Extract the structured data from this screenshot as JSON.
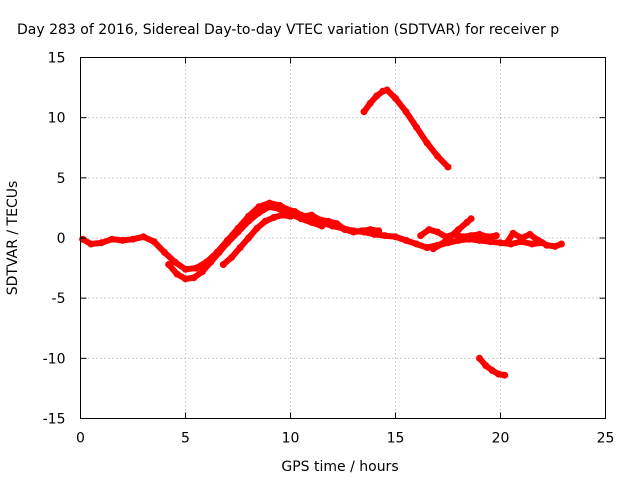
{
  "chart_data": {
    "type": "scatter",
    "title": "Day 283 of 2016, Sidereal Day-to-day VTEC variation (SDTVAR) for receiver p",
    "xlabel": "GPS time / hours",
    "ylabel": "SDTVAR / TECUs",
    "xlim": [
      0,
      25
    ],
    "ylim": [
      -15,
      15
    ],
    "x_ticks": [
      "0",
      "5",
      "10",
      "15",
      "20",
      "25"
    ],
    "x_tick_values": [
      0,
      5,
      10,
      15,
      20,
      25
    ],
    "y_ticks": [
      "15",
      "10",
      "5",
      "0",
      "-5",
      "-10",
      "-15"
    ],
    "y_tick_values": [
      15,
      10,
      5,
      0,
      -5,
      -10,
      -15
    ],
    "grid": true,
    "legend": "none",
    "marker_color": "#ff0000",
    "series": [
      {
        "points": [
          [
            0.1,
            -0.1
          ],
          [
            0.5,
            -0.5
          ],
          [
            1.0,
            -0.4
          ],
          [
            1.5,
            -0.1
          ],
          [
            2.0,
            -0.2
          ],
          [
            2.5,
            -0.1
          ],
          [
            3.0,
            0.1
          ],
          [
            3.5,
            -0.3
          ],
          [
            4.0,
            -1.2
          ],
          [
            4.5,
            -2.0
          ],
          [
            5.0,
            -2.6
          ],
          [
            5.5,
            -2.5
          ],
          [
            6.0,
            -2.0
          ],
          [
            6.5,
            -1.2
          ],
          [
            7.0,
            -0.2
          ],
          [
            7.5,
            0.8
          ],
          [
            8.0,
            1.8
          ],
          [
            8.5,
            2.6
          ],
          [
            9.0,
            2.9
          ],
          [
            9.5,
            2.7
          ],
          [
            10.0,
            2.2
          ],
          [
            10.5,
            1.9
          ],
          [
            11.0,
            1.6
          ],
          [
            11.5,
            1.3
          ],
          [
            12.0,
            1.0
          ],
          [
            12.5,
            0.8
          ],
          [
            13.0,
            0.6
          ],
          [
            13.5,
            0.5
          ],
          [
            14.0,
            0.3
          ],
          [
            14.5,
            0.2
          ],
          [
            15.0,
            0.1
          ],
          [
            15.5,
            -0.2
          ],
          [
            16.0,
            -0.5
          ],
          [
            16.5,
            -0.8
          ],
          [
            17.0,
            -0.6
          ],
          [
            17.5,
            -0.4
          ],
          [
            18.0,
            -0.2
          ],
          [
            18.5,
            -0.1
          ],
          [
            19.0,
            -0.2
          ],
          [
            19.5,
            -0.3
          ],
          [
            20.0,
            -0.4
          ],
          [
            20.5,
            -0.5
          ],
          [
            21.0,
            -0.3
          ],
          [
            21.5,
            -0.5
          ],
          [
            22.0,
            -0.4
          ]
        ]
      },
      {
        "points": [
          [
            4.2,
            -2.2
          ],
          [
            4.6,
            -3.0
          ],
          [
            5.0,
            -3.4
          ],
          [
            5.4,
            -3.3
          ],
          [
            5.8,
            -2.8
          ],
          [
            6.2,
            -2.0
          ],
          [
            6.6,
            -1.2
          ],
          [
            7.0,
            -0.4
          ],
          [
            7.5,
            0.5
          ],
          [
            8.0,
            1.4
          ],
          [
            8.5,
            2.1
          ],
          [
            9.0,
            2.6
          ],
          [
            9.5,
            2.4
          ],
          [
            10.0,
            2.0
          ],
          [
            10.5,
            1.6
          ],
          [
            11.0,
            1.3
          ],
          [
            11.5,
            1.0
          ]
        ]
      },
      {
        "points": [
          [
            6.8,
            -2.2
          ],
          [
            7.2,
            -1.6
          ],
          [
            7.6,
            -0.8
          ],
          [
            8.0,
            0.0
          ],
          [
            8.4,
            0.8
          ],
          [
            8.8,
            1.4
          ],
          [
            9.2,
            1.7
          ],
          [
            9.6,
            1.9
          ],
          [
            10.0,
            1.8
          ]
        ]
      },
      {
        "points": [
          [
            9.8,
            2.4
          ],
          [
            10.2,
            2.2
          ],
          [
            10.6,
            1.8
          ],
          [
            11.0,
            1.9
          ],
          [
            11.4,
            1.5
          ],
          [
            11.8,
            1.4
          ],
          [
            12.2,
            1.2
          ],
          [
            12.6,
            0.7
          ],
          [
            13.0,
            0.5
          ],
          [
            13.4,
            0.6
          ],
          [
            13.8,
            0.7
          ],
          [
            14.2,
            0.6
          ]
        ]
      },
      {
        "points": [
          [
            16.2,
            0.2
          ],
          [
            16.6,
            0.7
          ],
          [
            17.0,
            0.5
          ],
          [
            17.4,
            0.1
          ],
          [
            17.8,
            0.3
          ],
          [
            18.2,
            0.1
          ],
          [
            18.6,
            0.2
          ],
          [
            19.0,
            0.3
          ],
          [
            19.4,
            0.1
          ],
          [
            19.8,
            0.2
          ]
        ]
      },
      {
        "points": [
          [
            16.8,
            -0.9
          ],
          [
            17.2,
            -0.5
          ],
          [
            17.6,
            0.1
          ],
          [
            18.0,
            0.7
          ],
          [
            18.4,
            1.3
          ],
          [
            18.6,
            1.6
          ]
        ]
      },
      {
        "points": [
          [
            20.3,
            -0.4
          ],
          [
            20.6,
            0.4
          ],
          [
            21.0,
            0.0
          ],
          [
            21.4,
            0.3
          ],
          [
            21.8,
            -0.2
          ],
          [
            22.2,
            -0.6
          ],
          [
            22.6,
            -0.7
          ],
          [
            22.9,
            -0.5
          ]
        ]
      },
      {
        "points": [
          [
            13.5,
            10.5
          ],
          [
            13.8,
            11.2
          ],
          [
            14.1,
            11.8
          ],
          [
            14.4,
            12.2
          ],
          [
            14.6,
            12.3
          ],
          [
            15.0,
            11.6
          ],
          [
            15.5,
            10.5
          ],
          [
            16.0,
            9.2
          ],
          [
            16.5,
            7.9
          ],
          [
            17.0,
            6.8
          ],
          [
            17.5,
            5.9
          ]
        ]
      },
      {
        "points": [
          [
            19.0,
            -10.0
          ],
          [
            19.3,
            -10.6
          ],
          [
            19.6,
            -11.0
          ],
          [
            19.9,
            -11.3
          ],
          [
            20.2,
            -11.4
          ]
        ]
      }
    ]
  }
}
